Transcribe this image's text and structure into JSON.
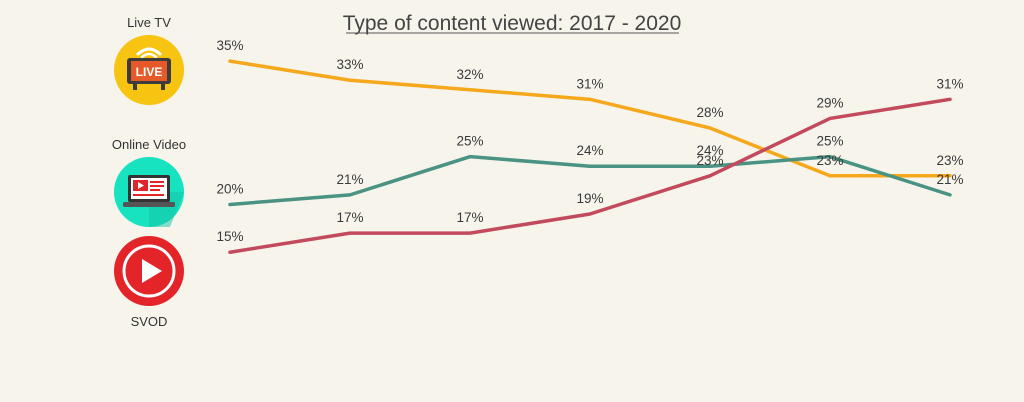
{
  "chart_data": {
    "type": "line",
    "title": "Type of content viewed: 2017 - 2020",
    "ylim": [
      10,
      40
    ],
    "x": [
      0,
      1,
      2,
      3,
      4,
      5,
      6
    ],
    "series": [
      {
        "name": "Live TV",
        "color": "#f5a81c",
        "values": [
          35,
          33,
          32,
          31,
          28,
          23,
          23
        ],
        "labels": [
          "35%",
          "33%",
          "32%",
          "31%",
          "28%",
          "23%",
          "23%"
        ]
      },
      {
        "name": "Online Video",
        "color": "#4a9283",
        "values": [
          20,
          21,
          25,
          24,
          24,
          25,
          21
        ],
        "labels": [
          "20%",
          "21%",
          "25%",
          "24%",
          "24%",
          "25%",
          "21%"
        ]
      },
      {
        "name": "SVOD",
        "color": "#c24a5c",
        "values": [
          15,
          17,
          17,
          19,
          23,
          29,
          31
        ],
        "labels": [
          "15%",
          "17%",
          "17%",
          "19%",
          "23%",
          "29%",
          "31%"
        ]
      }
    ]
  },
  "icons": {
    "live_tv": {
      "name": "live-tv-icon",
      "text": "LIVE",
      "color": "#f7c412"
    },
    "online_video": {
      "name": "online-video-icon",
      "color": "#18e3c0"
    },
    "svod": {
      "name": "svod-play-icon",
      "color": "#e3252a"
    }
  }
}
